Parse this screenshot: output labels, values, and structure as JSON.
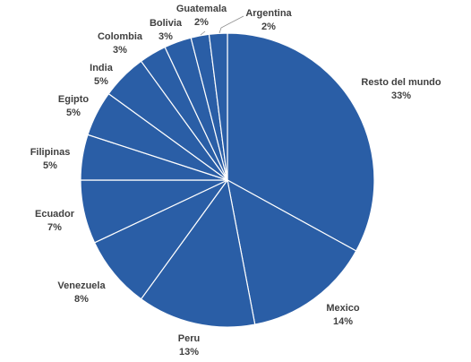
{
  "chart_data": {
    "type": "pie",
    "title": "",
    "start": "12 o'clock, clockwise",
    "color": "#2a5ea6",
    "border_color": "#ffffff",
    "slices": [
      {
        "name": "Resto del mundo",
        "value": 33,
        "label": "33%"
      },
      {
        "name": "Mexico",
        "value": 14,
        "label": "14%"
      },
      {
        "name": "Peru",
        "value": 13,
        "label": "13%"
      },
      {
        "name": "Venezuela",
        "value": 8,
        "label": "8%"
      },
      {
        "name": "Ecuador",
        "value": 7,
        "label": "7%"
      },
      {
        "name": "Filipinas",
        "value": 5,
        "label": "5%"
      },
      {
        "name": "Egipto",
        "value": 5,
        "label": "5%"
      },
      {
        "name": "India",
        "value": 5,
        "label": "5%"
      },
      {
        "name": "Colombia",
        "value": 3,
        "label": "3%"
      },
      {
        "name": "Bolivia",
        "value": 3,
        "label": "3%"
      },
      {
        "name": "Guatemala",
        "value": 2,
        "label": "2%"
      },
      {
        "name": "Argentina",
        "value": 2,
        "label": "2%"
      }
    ]
  }
}
